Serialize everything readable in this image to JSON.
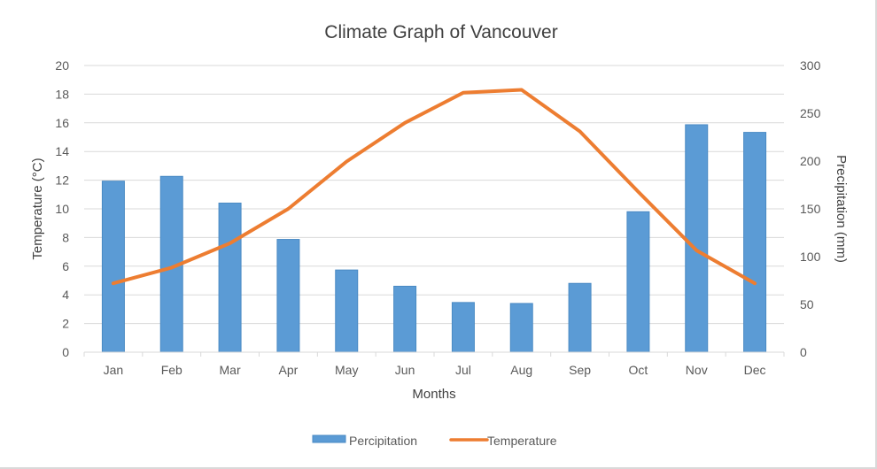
{
  "chart_data": {
    "type": "bar",
    "title": "Climate Graph of Vancouver",
    "xlabel": "Months",
    "ylabel": "Temperature (°C)",
    "y2label": "Precipitation (mm)",
    "categories": [
      "Jan",
      "Feb",
      "Mar",
      "Apr",
      "May",
      "Jun",
      "Jul",
      "Aug",
      "Sep",
      "Oct",
      "Nov",
      "Dec"
    ],
    "ylim": [
      0,
      20
    ],
    "y2lim": [
      0,
      300
    ],
    "yticks": [
      "0",
      "2",
      "4",
      "6",
      "8",
      "10",
      "12",
      "14",
      "16",
      "18",
      "20"
    ],
    "y2ticks": [
      "0",
      "50",
      "100",
      "150",
      "200",
      "250",
      "300"
    ],
    "grid": true,
    "legend_position": "bottom",
    "series": [
      {
        "name": "Percipitation",
        "type": "bar",
        "axis": "right",
        "color": "#5b9bd5",
        "values": [
          179,
          184,
          156,
          118,
          86,
          69,
          52,
          51,
          72,
          147,
          238,
          230
        ]
      },
      {
        "name": "Temperature",
        "type": "line",
        "axis": "left",
        "color": "#ed7d31",
        "values": [
          4.8,
          5.9,
          7.6,
          10.0,
          13.3,
          16.0,
          18.1,
          18.3,
          15.4,
          11.2,
          7.1,
          4.8
        ]
      }
    ]
  }
}
